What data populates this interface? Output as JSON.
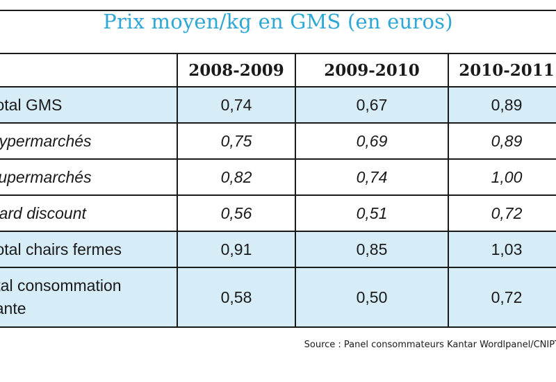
{
  "title": "Prix moyen/kg en GMS (en euros)",
  "columns": [
    "",
    "2008-2009",
    "2009-2010",
    "2010-2011"
  ],
  "rows": [
    {
      "label": "Total GMS",
      "values": [
        "0,74",
        "0,67",
        "0,89"
      ]
    },
    {
      "label": "Hypermarchés",
      "values": [
        "0,75",
        "0,69",
        "0,89"
      ]
    },
    {
      "label": "Supermarchés",
      "values": [
        "0,82",
        "0,74",
        "1,00"
      ]
    },
    {
      "label": "Hard discount",
      "values": [
        "0,56",
        "0,51",
        "0,72"
      ]
    },
    {
      "label": "Total chairs fermes",
      "values": [
        "0,91",
        "0,85",
        "1,03"
      ]
    },
    {
      "label_line1": "Total consommation",
      "label_line2": "courante",
      "values": [
        "0,58",
        "0,50",
        "0,72"
      ]
    }
  ],
  "source": "Source : Panel consommateurs Kantar Wordlpanel/CNIPT"
}
